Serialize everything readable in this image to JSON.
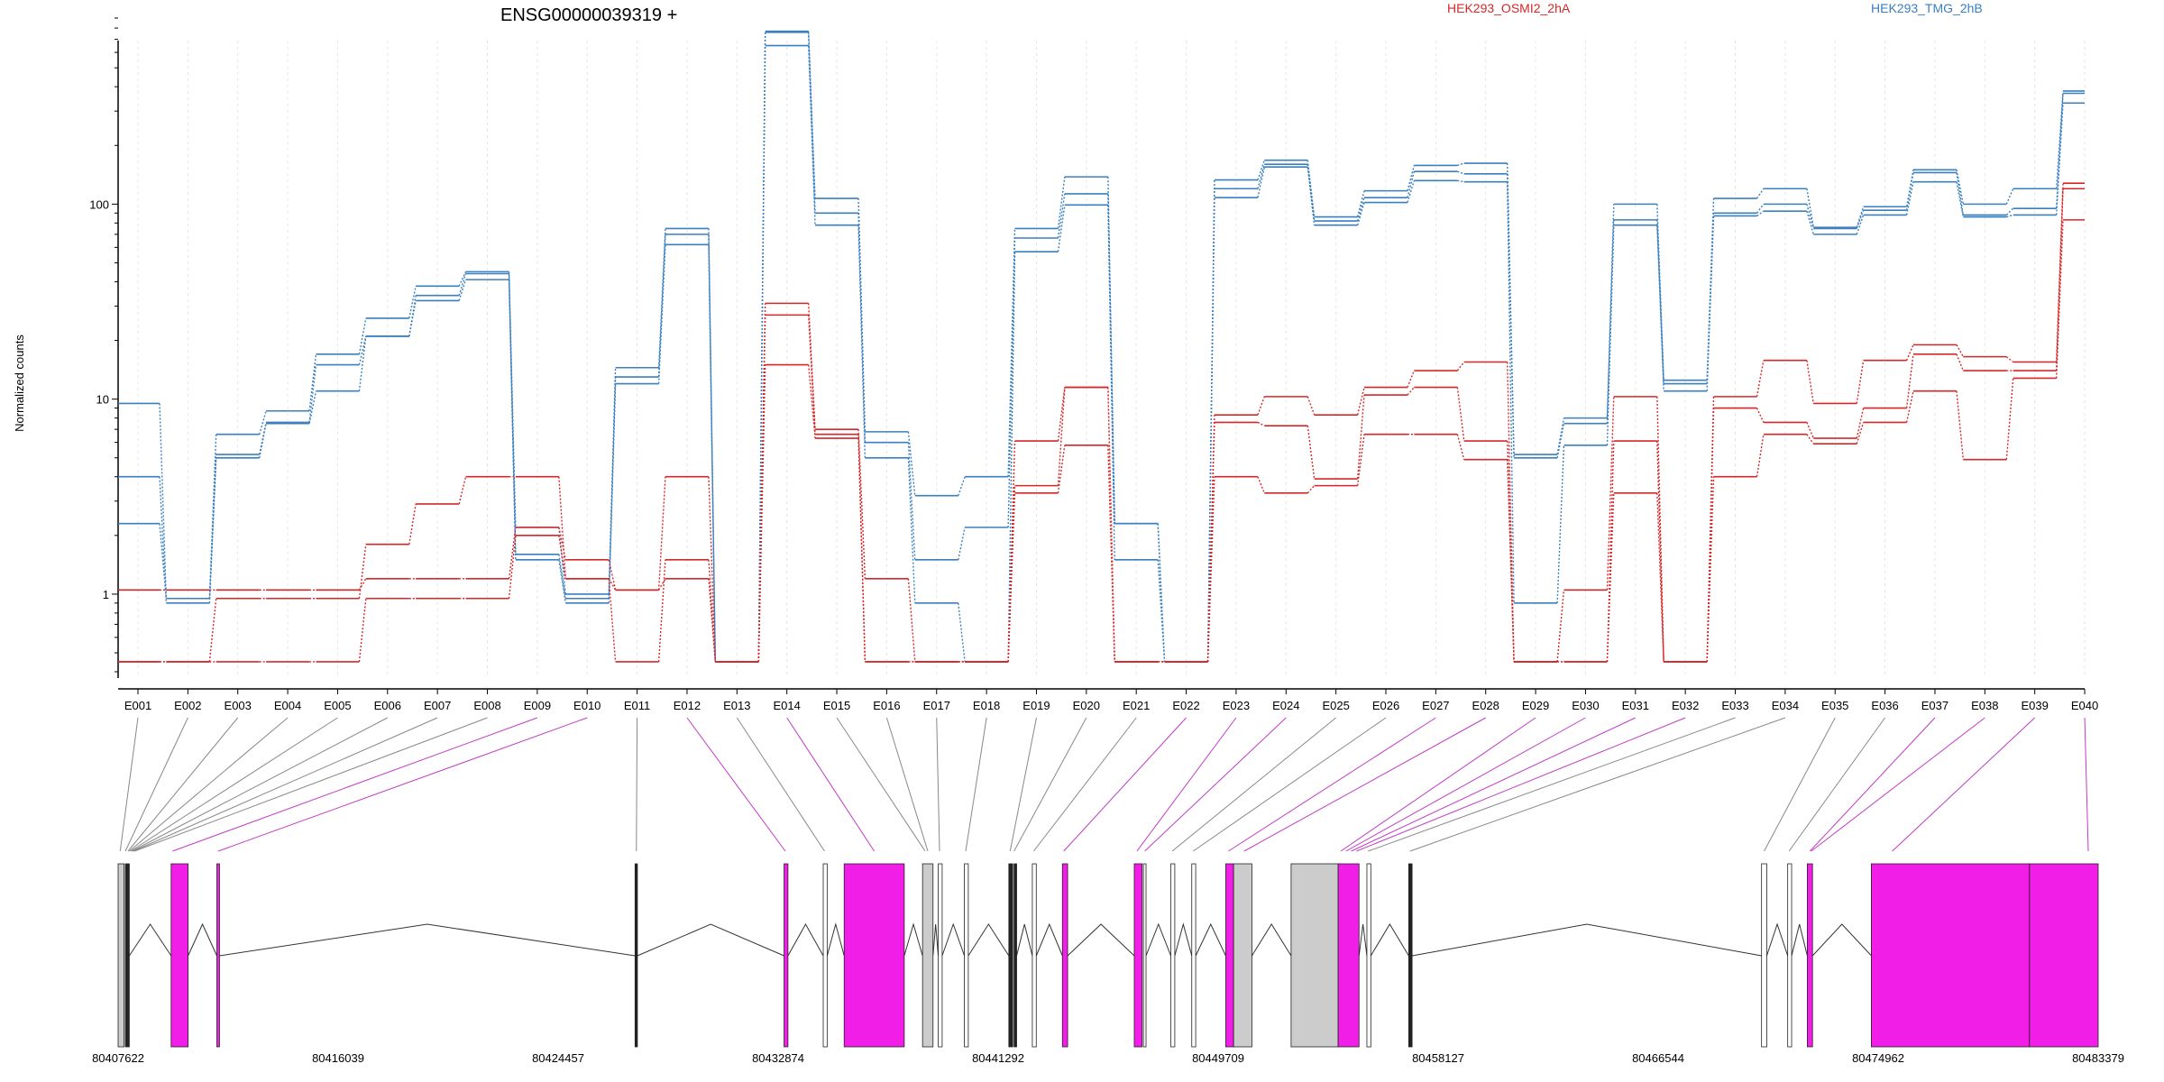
{
  "chart_data": {
    "type": "line",
    "title": "ENSG00000039319 +",
    "ylabel": "Normalized counts",
    "xlabel": "",
    "y_scale": "log",
    "ylim": [
      0.4,
      900
    ],
    "y_ticks": [
      {
        "value": 1,
        "label": "1"
      },
      {
        "value": 10,
        "label": "10"
      },
      {
        "value": 100,
        "label": "100"
      }
    ],
    "grid": "vertical dotted lines at each exon bin",
    "legend": [
      {
        "name": "HEK293_OSMI2_2hA",
        "color": "#d62728"
      },
      {
        "name": "HEK293_TMG_2hB",
        "color": "#3a7fbf"
      }
    ],
    "categories": [
      "E001",
      "E002",
      "E003",
      "E004",
      "E005",
      "E006",
      "E007",
      "E008",
      "E009",
      "E010",
      "E011",
      "E012",
      "E013",
      "E014",
      "E015",
      "E016",
      "E017",
      "E018",
      "E019",
      "E020",
      "E021",
      "E022",
      "E023",
      "E024",
      "E025",
      "E026",
      "E027",
      "E028",
      "E029",
      "E030",
      "E031",
      "E032",
      "E033",
      "E034",
      "E035",
      "E036",
      "E037",
      "E038",
      "E039",
      "E040"
    ],
    "series": [
      {
        "name": "",
        "color": "#3a7fbf",
        "values": [
          9.5,
          0.95,
          5.0,
          7.5,
          11,
          21,
          32,
          41,
          1.5,
          0.9,
          12,
          62,
          0.45,
          650,
          78,
          5.0,
          0.9,
          0.45,
          57,
          99,
          1.5,
          0.45,
          108,
          155,
          78,
          102,
          132,
          130,
          0.9,
          5.8,
          78,
          11,
          87,
          92,
          70,
          88,
          130,
          86,
          88,
          330
        ]
      },
      {
        "name": "",
        "color": "#3a7fbf",
        "values": [
          4.0,
          0.9,
          5.2,
          7.6,
          15,
          21,
          34,
          44,
          1.6,
          0.95,
          13,
          70,
          0.45,
          760,
          90,
          6.0,
          1.5,
          2.2,
          67,
          113,
          2.3,
          0.45,
          120,
          160,
          82,
          108,
          147,
          143,
          5.0,
          7.5,
          83,
          12,
          90,
          100,
          75,
          93,
          145,
          88,
          95,
          370
        ]
      },
      {
        "name": "",
        "color": "#3a7fbf",
        "values": [
          2.3,
          0.95,
          6.6,
          8.7,
          17,
          26,
          38,
          45,
          2.2,
          1.0,
          14.5,
          75,
          0.45,
          770,
          107,
          6.8,
          3.2,
          4.0,
          75,
          138,
          2.3,
          0.45,
          133,
          168,
          86,
          117,
          158,
          162,
          5.2,
          8.0,
          100,
          12.5,
          107,
          120,
          76,
          97,
          150,
          100,
          120,
          380
        ]
      },
      {
        "name": "",
        "color": "#d62728",
        "values": [
          1.05,
          1.05,
          1.05,
          1.05,
          1.05,
          1.2,
          1.2,
          1.2,
          2.2,
          1.5,
          1.05,
          4.0,
          0.45,
          31,
          7.0,
          1.2,
          0.45,
          0.45,
          6.1,
          11.5,
          0.45,
          0.45,
          8.3,
          10.3,
          8.3,
          11.5,
          14,
          15.5,
          0.45,
          1.05,
          10.3,
          0.45,
          10.3,
          15.8,
          9.5,
          15.8,
          19,
          16.5,
          15.5,
          128
        ]
      },
      {
        "name": "",
        "color": "#d62728",
        "values": [
          0.45,
          0.45,
          0.95,
          0.95,
          0.95,
          1.8,
          2.9,
          4.0,
          4.0,
          1.2,
          0.45,
          1.5,
          0.45,
          27,
          6.6,
          0.45,
          0.45,
          0.45,
          3.6,
          11.5,
          0.45,
          0.45,
          7.6,
          7.3,
          3.9,
          10.5,
          11.5,
          6.1,
          0.45,
          0.45,
          6.1,
          0.45,
          9.0,
          7.6,
          6.3,
          9.0,
          17,
          14,
          14,
          120
        ]
      },
      {
        "name": "",
        "color": "#d62728",
        "values": [
          0.45,
          0.45,
          0.45,
          0.45,
          0.45,
          0.95,
          0.95,
          0.95,
          2.0,
          1.2,
          1.05,
          1.2,
          0.45,
          15,
          6.3,
          0.45,
          0.45,
          0.45,
          3.3,
          5.8,
          0.45,
          0.45,
          4.0,
          3.3,
          3.6,
          6.6,
          6.6,
          4.9,
          0.45,
          0.45,
          3.3,
          0.45,
          4.0,
          6.6,
          5.9,
          7.6,
          11,
          4.9,
          12.8,
          83
        ]
      }
    ],
    "gene_coordinates": [
      {
        "label": "80407622"
      },
      {
        "label": "80416039"
      },
      {
        "label": "80424457"
      },
      {
        "label": "80432874"
      },
      {
        "label": "80441292"
      },
      {
        "label": "80449709"
      },
      {
        "label": "80458127"
      },
      {
        "label": "80466544"
      },
      {
        "label": "80474962"
      },
      {
        "label": "80483379"
      }
    ],
    "gene_model": {
      "start": 80407622,
      "end": 80483379,
      "exon_colors": {
        "highlighted": "#f01ee6",
        "normal": "#cccccc",
        "plain": "#ffffff"
      }
    }
  }
}
